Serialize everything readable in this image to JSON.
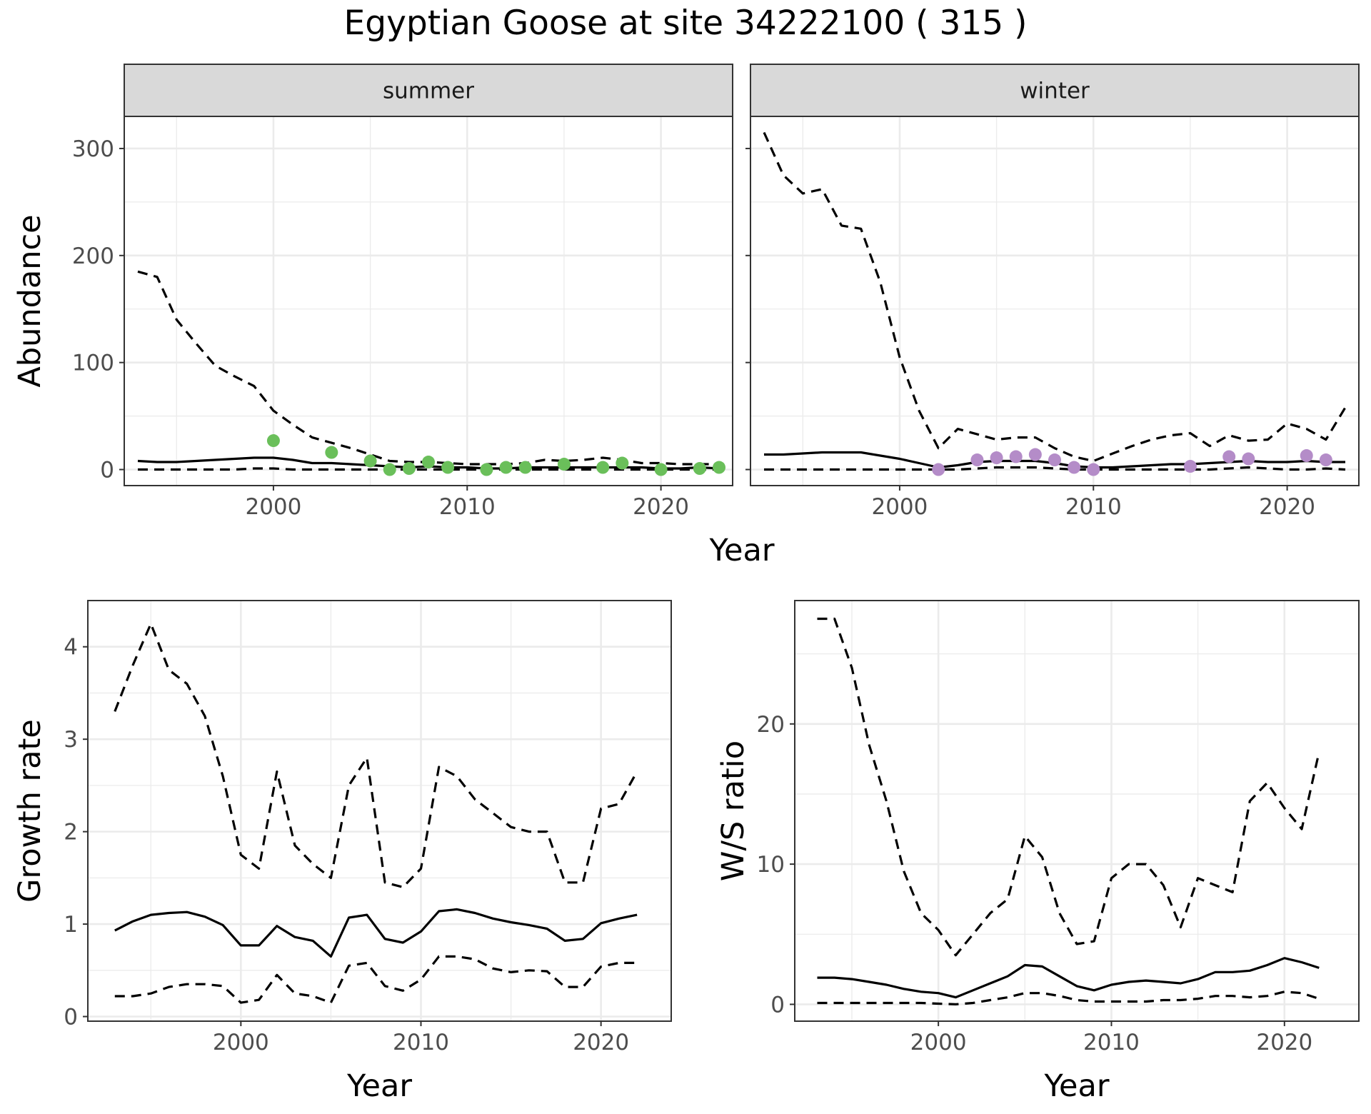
{
  "title": "Egyptian Goose at site 34222100 ( 315 )",
  "chart_data": [
    {
      "id": "abundance-summer",
      "type": "line",
      "panel_label": "summer",
      "xlabel": "Year",
      "ylabel": "Abundance",
      "xlim": [
        1992.3,
        2023.7
      ],
      "ylim": [
        -15,
        330
      ],
      "x_ticks": [
        2000,
        2010,
        2020
      ],
      "y_ticks": [
        0,
        100,
        200,
        300
      ],
      "grid": true,
      "point_color": "#6abf5a",
      "x": [
        1993,
        1994,
        1995,
        1996,
        1997,
        1998,
        1999,
        2000,
        2001,
        2002,
        2003,
        2004,
        2005,
        2006,
        2007,
        2008,
        2009,
        2010,
        2011,
        2012,
        2013,
        2014,
        2015,
        2016,
        2017,
        2018,
        2019,
        2020,
        2021,
        2022,
        2023
      ],
      "series": [
        {
          "role": "upper",
          "style": "dashed",
          "values": [
            185,
            180,
            140,
            118,
            97,
            87,
            78,
            55,
            42,
            30,
            25,
            20,
            14,
            8,
            7,
            7,
            6,
            5,
            5,
            5,
            6,
            9,
            8,
            9,
            11,
            9,
            6,
            6,
            5,
            5,
            5
          ]
        },
        {
          "role": "mean",
          "style": "solid",
          "values": [
            8,
            7,
            7,
            8,
            9,
            10,
            11,
            11,
            9,
            6,
            6,
            5,
            4,
            3,
            2,
            3,
            2,
            2,
            1,
            1,
            2,
            2,
            2,
            2,
            2,
            2,
            2,
            1,
            1,
            2,
            1
          ]
        },
        {
          "role": "lower",
          "style": "dashed",
          "values": [
            0,
            0,
            0,
            0,
            0,
            0,
            1,
            1,
            0,
            0,
            0,
            0,
            0,
            0,
            0,
            0,
            0,
            0,
            0,
            0,
            0,
            0,
            0,
            0,
            0,
            0,
            0,
            0,
            0,
            0,
            0
          ]
        }
      ],
      "points": {
        "x": [
          2000,
          2003,
          2005,
          2006,
          2007,
          2008,
          2009,
          2011,
          2012,
          2013,
          2015,
          2017,
          2018,
          2020,
          2022,
          2023
        ],
        "y": [
          27,
          16,
          8,
          0,
          1,
          7,
          2,
          0,
          2,
          2,
          5,
          2,
          6,
          0,
          1,
          2
        ]
      }
    },
    {
      "id": "abundance-winter",
      "type": "line",
      "panel_label": "winter",
      "xlabel": "Year",
      "ylabel": "Abundance",
      "xlim": [
        1992.3,
        2023.7
      ],
      "ylim": [
        -15,
        330
      ],
      "x_ticks": [
        2000,
        2010,
        2020
      ],
      "y_ticks": [
        0,
        100,
        200,
        300
      ],
      "grid": true,
      "point_color": "#b48cc8",
      "x": [
        1993,
        1994,
        1995,
        1996,
        1997,
        1998,
        1999,
        2000,
        2001,
        2002,
        2003,
        2004,
        2005,
        2006,
        2007,
        2008,
        2009,
        2010,
        2011,
        2012,
        2013,
        2014,
        2015,
        2016,
        2017,
        2018,
        2019,
        2020,
        2021,
        2022,
        2023
      ],
      "series": [
        {
          "role": "upper",
          "style": "dashed",
          "values": [
            315,
            275,
            258,
            262,
            228,
            225,
            175,
            105,
            55,
            20,
            38,
            33,
            28,
            30,
            30,
            20,
            12,
            8,
            15,
            22,
            28,
            32,
            34,
            22,
            32,
            27,
            28,
            43,
            38,
            28,
            58
          ]
        },
        {
          "role": "mean",
          "style": "solid",
          "values": [
            14,
            14,
            15,
            16,
            16,
            16,
            13,
            10,
            6,
            2,
            4,
            7,
            8,
            8,
            8,
            6,
            3,
            2,
            2,
            3,
            4,
            5,
            5,
            6,
            7,
            8,
            7,
            7,
            8,
            7,
            7
          ]
        },
        {
          "role": "lower",
          "style": "dashed",
          "values": [
            0,
            0,
            0,
            0,
            0,
            0,
            0,
            0,
            0,
            0,
            0,
            1,
            2,
            2,
            2,
            1,
            0,
            0,
            0,
            0,
            0,
            0,
            0,
            0,
            1,
            2,
            1,
            0,
            0,
            1,
            0
          ]
        }
      ],
      "points": {
        "x": [
          2002,
          2004,
          2005,
          2006,
          2007,
          2008,
          2009,
          2010,
          2015,
          2017,
          2018,
          2021,
          2022
        ],
        "y": [
          0,
          9,
          11,
          12,
          14,
          9,
          2,
          0,
          3,
          12,
          10,
          13,
          9
        ]
      }
    },
    {
      "id": "growth-rate",
      "type": "line",
      "xlabel": "Year",
      "ylabel": "Growth rate",
      "xlim": [
        1991.5,
        2023.9
      ],
      "ylim": [
        -0.05,
        4.5
      ],
      "x_ticks": [
        2000,
        2010,
        2020
      ],
      "y_ticks": [
        0,
        1,
        2,
        3,
        4
      ],
      "grid": true,
      "x": [
        1993,
        1994,
        1995,
        1996,
        1997,
        1998,
        1999,
        2000,
        2001,
        2002,
        2003,
        2004,
        2005,
        2006,
        2007,
        2008,
        2009,
        2010,
        2011,
        2012,
        2013,
        2014,
        2015,
        2016,
        2017,
        2018,
        2019,
        2020,
        2021,
        2022
      ],
      "series": [
        {
          "role": "upper",
          "style": "dashed",
          "values": [
            3.3,
            3.8,
            4.25,
            3.75,
            3.6,
            3.25,
            2.6,
            1.75,
            1.6,
            2.65,
            1.85,
            1.65,
            1.5,
            2.5,
            2.8,
            1.45,
            1.4,
            1.6,
            2.7,
            2.6,
            2.35,
            2.2,
            2.05,
            2.0,
            2.0,
            1.45,
            1.45,
            2.25,
            2.3,
            2.65
          ]
        },
        {
          "role": "mean",
          "style": "solid",
          "values": [
            0.93,
            1.03,
            1.1,
            1.12,
            1.13,
            1.08,
            0.99,
            0.77,
            0.77,
            0.98,
            0.86,
            0.82,
            0.65,
            1.07,
            1.1,
            0.84,
            0.8,
            0.92,
            1.14,
            1.16,
            1.12,
            1.06,
            1.02,
            0.99,
            0.95,
            0.82,
            0.84,
            1.01,
            1.06,
            1.1
          ]
        },
        {
          "role": "lower",
          "style": "dashed",
          "values": [
            0.22,
            0.22,
            0.25,
            0.32,
            0.35,
            0.35,
            0.33,
            0.15,
            0.18,
            0.45,
            0.25,
            0.22,
            0.15,
            0.55,
            0.58,
            0.33,
            0.28,
            0.4,
            0.65,
            0.65,
            0.62,
            0.52,
            0.48,
            0.5,
            0.49,
            0.32,
            0.32,
            0.54,
            0.58,
            0.58
          ]
        }
      ]
    },
    {
      "id": "ws-ratio",
      "type": "line",
      "xlabel": "Year",
      "ylabel": "W/S ratio",
      "xlim": [
        1991.7,
        2024.3
      ],
      "ylim": [
        -1.2,
        28.8
      ],
      "x_ticks": [
        2000,
        2010,
        2020
      ],
      "y_ticks": [
        0,
        10,
        20
      ],
      "grid": true,
      "x": [
        1993,
        1994,
        1995,
        1996,
        1997,
        1998,
        1999,
        2000,
        2001,
        2002,
        2003,
        2004,
        2005,
        2006,
        2007,
        2008,
        2009,
        2010,
        2011,
        2012,
        2013,
        2014,
        2015,
        2016,
        2017,
        2018,
        2019,
        2020,
        2021,
        2022
      ],
      "series": [
        {
          "role": "upper",
          "style": "dashed",
          "values": [
            27.5,
            27.5,
            24,
            18.5,
            14.5,
            9.5,
            6.5,
            5.3,
            3.5,
            5,
            6.5,
            7.5,
            12,
            10.5,
            6.5,
            4.3,
            4.5,
            9,
            10,
            10,
            8.5,
            5.5,
            9,
            8.5,
            8,
            14.5,
            15.8,
            14,
            12.5,
            18
          ]
        },
        {
          "role": "mean",
          "style": "solid",
          "values": [
            1.9,
            1.9,
            1.8,
            1.6,
            1.4,
            1.1,
            0.9,
            0.8,
            0.5,
            1,
            1.5,
            2,
            2.8,
            2.7,
            2,
            1.3,
            1,
            1.4,
            1.6,
            1.7,
            1.6,
            1.5,
            1.8,
            2.3,
            2.3,
            2.4,
            2.8,
            3.3,
            3,
            2.6
          ]
        },
        {
          "role": "lower",
          "style": "dashed",
          "values": [
            0.1,
            0.1,
            0.1,
            0.1,
            0.1,
            0.1,
            0.1,
            0.05,
            0,
            0.1,
            0.3,
            0.5,
            0.8,
            0.8,
            0.6,
            0.3,
            0.2,
            0.2,
            0.2,
            0.2,
            0.3,
            0.3,
            0.4,
            0.6,
            0.6,
            0.5,
            0.6,
            0.9,
            0.8,
            0.4
          ]
        }
      ]
    }
  ]
}
